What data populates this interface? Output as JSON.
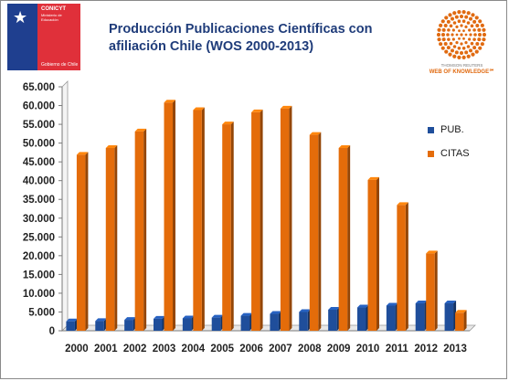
{
  "header": {
    "logo_left": {
      "name": "CONICYT",
      "sub": "Ministerio de Educación",
      "footer": "Gobierno de Chile",
      "colors": {
        "blue": "#1f3f8f",
        "red": "#e0303a"
      }
    },
    "logo_right": {
      "line1": "THOMSON REUTERS",
      "line2": "WEB OF KNOWLEDGE℠",
      "color": "#e06a10"
    }
  },
  "chart_data": {
    "type": "bar",
    "title": "Producción Publicaciones Científicas con afiliación Chile (WOS 2000-2013)",
    "xlabel": "",
    "ylabel": "",
    "categories": [
      "2000",
      "2001",
      "2002",
      "2003",
      "2004",
      "2005",
      "2006",
      "2007",
      "2008",
      "2009",
      "2010",
      "2011",
      "2012",
      "2013"
    ],
    "series": [
      {
        "name": "PUB.",
        "color": "#1f4e9b",
        "values": [
          2500,
          2600,
          2900,
          3200,
          3300,
          3500,
          4000,
          4500,
          5000,
          5600,
          6200,
          6700,
          7300,
          7300
        ]
      },
      {
        "name": "CITAS",
        "color": "#e46c0a",
        "values": [
          46900,
          48700,
          53100,
          60800,
          58800,
          55000,
          58200,
          59200,
          52200,
          48700,
          40200,
          33500,
          20600,
          4800
        ]
      }
    ],
    "ylim": [
      0,
      65000
    ],
    "yticks": [
      "0",
      "5.000",
      "10.000",
      "15.000",
      "20.000",
      "25.000",
      "30.000",
      "35.000",
      "40.000",
      "45.000",
      "50.000",
      "55.000",
      "60.000",
      "65.000"
    ],
    "grid": false,
    "legend_position": "right",
    "style": "3d-column"
  }
}
